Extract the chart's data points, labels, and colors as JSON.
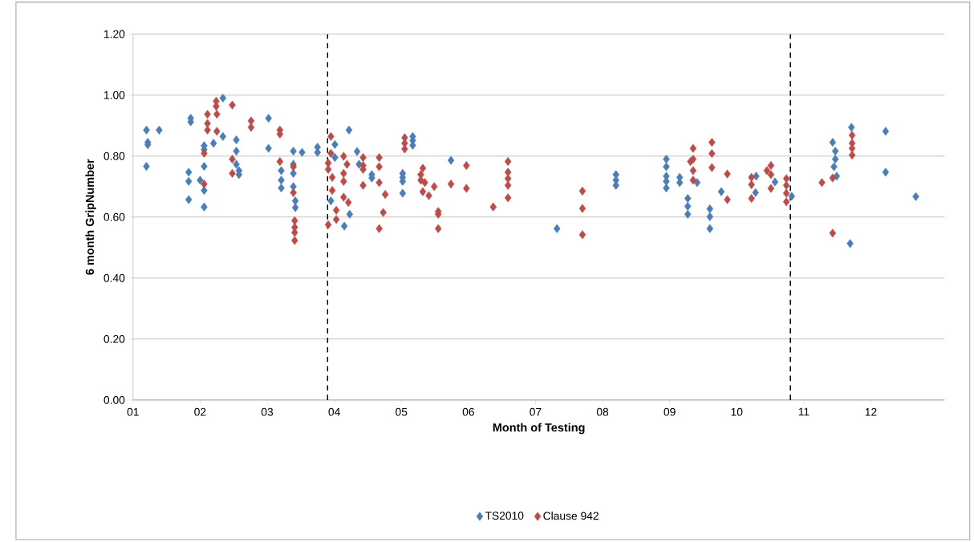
{
  "chart_data": {
    "type": "scatter",
    "xlabel": "Month of Testing",
    "ylabel": "6 month GripNumber",
    "xlim": [
      1,
      13.1
    ],
    "ylim": [
      0,
      1.2
    ],
    "xticks": [
      {
        "value": 1,
        "label": "01"
      },
      {
        "value": 2,
        "label": "02"
      },
      {
        "value": 3,
        "label": "03"
      },
      {
        "value": 4,
        "label": "04"
      },
      {
        "value": 5,
        "label": "05"
      },
      {
        "value": 6,
        "label": "06"
      },
      {
        "value": 7,
        "label": "07"
      },
      {
        "value": 8,
        "label": "08"
      },
      {
        "value": 9,
        "label": "09"
      },
      {
        "value": 10,
        "label": "10"
      },
      {
        "value": 11,
        "label": "11"
      },
      {
        "value": 12,
        "label": "12"
      }
    ],
    "yticks": [
      {
        "value": 0,
        "label": "0.00"
      },
      {
        "value": 0.2,
        "label": "0.20"
      },
      {
        "value": 0.4,
        "label": "0.40"
      },
      {
        "value": 0.6,
        "label": "0.60"
      },
      {
        "value": 0.8,
        "label": "0.80"
      },
      {
        "value": 1.0,
        "label": "1.00"
      },
      {
        "value": 1.2,
        "label": "1.20"
      }
    ],
    "grid": "y",
    "legend": "bottom",
    "marker": "diamond",
    "ref_lines": [
      {
        "axis": "x",
        "value": 3.9,
        "color": "#000000",
        "line_style": "dashed"
      },
      {
        "axis": "x",
        "value": 10.8,
        "color": "#000000",
        "line_style": "dashed"
      }
    ],
    "series": [
      {
        "name": "TS2010",
        "color": "#4a7ebb",
        "x": [
          1.2,
          1.39,
          1.22,
          1.22,
          1.2,
          1.86,
          1.86,
          1.83,
          1.83,
          1.83,
          2.06,
          2.06,
          2.06,
          2.0,
          2.06,
          2.06,
          2.2,
          2.34,
          2.34,
          2.54,
          2.54,
          2.54,
          2.58,
          2.58,
          3.02,
          3.02,
          3.21,
          3.21,
          3.21,
          3.39,
          3.39,
          3.39,
          3.39,
          3.42,
          3.42,
          3.52,
          3.75,
          3.75,
          3.95,
          4.01,
          4.01,
          4.22,
          4.23,
          4.15,
          4.34,
          4.37,
          4.56,
          4.56,
          5.02,
          5.02,
          5.02,
          5.02,
          5.17,
          5.17,
          5.17,
          5.74,
          7.32,
          8.2,
          8.2,
          8.2,
          8.95,
          8.95,
          8.95,
          8.95,
          8.95,
          9.15,
          9.15,
          9.27,
          9.27,
          9.27,
          9.41,
          9.6,
          9.6,
          9.6,
          9.77,
          10.29,
          10.28,
          10.57,
          10.82,
          11.43,
          11.47,
          11.47,
          11.45,
          11.49,
          11.71,
          12.22,
          12.22,
          12.67,
          11.69
        ],
        "values": [
          0.885,
          0.885,
          0.837,
          0.845,
          0.766,
          0.924,
          0.912,
          0.747,
          0.717,
          0.657,
          0.834,
          0.821,
          0.766,
          0.721,
          0.687,
          0.633,
          0.842,
          0.99,
          0.864,
          0.853,
          0.816,
          0.773,
          0.752,
          0.739,
          0.924,
          0.825,
          0.752,
          0.721,
          0.695,
          0.816,
          0.773,
          0.743,
          0.7,
          0.653,
          0.631,
          0.812,
          0.829,
          0.812,
          0.653,
          0.838,
          0.795,
          0.885,
          0.609,
          0.57,
          0.815,
          0.773,
          0.739,
          0.728,
          0.743,
          0.73,
          0.717,
          0.678,
          0.864,
          0.851,
          0.835,
          0.786,
          0.562,
          0.739,
          0.721,
          0.704,
          0.79,
          0.765,
          0.734,
          0.717,
          0.695,
          0.73,
          0.713,
          0.661,
          0.635,
          0.609,
          0.713,
          0.627,
          0.601,
          0.562,
          0.683,
          0.734,
          0.68,
          0.715,
          0.668,
          0.845,
          0.816,
          0.79,
          0.765,
          0.734,
          0.894,
          0.881,
          0.747,
          0.667,
          0.513
        ]
      },
      {
        "name": "Clause 942",
        "color": "#be4b48",
        "x": [
          2.06,
          2.06,
          2.11,
          2.11,
          2.11,
          2.24,
          2.24,
          2.25,
          2.25,
          2.48,
          2.48,
          2.48,
          2.76,
          2.76,
          3.19,
          3.19,
          3.19,
          3.39,
          3.39,
          3.41,
          3.41,
          3.41,
          3.41,
          3.95,
          3.95,
          3.91,
          3.91,
          3.97,
          3.97,
          3.91,
          4.03,
          4.03,
          4.14,
          4.19,
          4.14,
          4.14,
          4.14,
          4.21,
          4.43,
          4.43,
          4.43,
          4.43,
          4.67,
          4.67,
          4.67,
          4.76,
          4.73,
          4.67,
          5.05,
          5.05,
          5.05,
          5.32,
          5.29,
          5.29,
          5.35,
          5.32,
          5.41,
          5.49,
          5.55,
          5.55,
          5.55,
          5.74,
          5.97,
          5.97,
          6.37,
          6.59,
          6.59,
          6.59,
          6.59,
          6.59,
          7.7,
          7.7,
          7.7,
          9.35,
          9.35,
          9.31,
          9.35,
          9.35,
          9.63,
          9.63,
          9.63,
          9.86,
          9.86,
          10.22,
          10.22,
          10.22,
          10.45,
          10.51,
          10.51,
          10.51,
          10.74,
          10.74,
          10.74,
          10.74,
          11.27,
          11.43,
          11.43,
          11.72,
          11.72,
          11.72,
          11.72
        ],
        "values": [
          0.809,
          0.708,
          0.937,
          0.907,
          0.885,
          0.98,
          0.963,
          0.937,
          0.881,
          0.967,
          0.79,
          0.743,
          0.915,
          0.894,
          0.885,
          0.872,
          0.782,
          0.765,
          0.68,
          0.588,
          0.566,
          0.549,
          0.523,
          0.864,
          0.809,
          0.777,
          0.756,
          0.73,
          0.687,
          0.575,
          0.622,
          0.592,
          0.799,
          0.773,
          0.743,
          0.717,
          0.665,
          0.648,
          0.795,
          0.769,
          0.756,
          0.704,
          0.795,
          0.765,
          0.713,
          0.674,
          0.615,
          0.562,
          0.86,
          0.842,
          0.823,
          0.76,
          0.739,
          0.721,
          0.713,
          0.683,
          0.67,
          0.7,
          0.618,
          0.609,
          0.562,
          0.708,
          0.769,
          0.694,
          0.633,
          0.782,
          0.747,
          0.726,
          0.704,
          0.663,
          0.685,
          0.628,
          0.542,
          0.825,
          0.79,
          0.782,
          0.752,
          0.721,
          0.845,
          0.808,
          0.762,
          0.741,
          0.657,
          0.73,
          0.706,
          0.661,
          0.752,
          0.769,
          0.739,
          0.694,
          0.726,
          0.704,
          0.678,
          0.65,
          0.713,
          0.728,
          0.547,
          0.868,
          0.842,
          0.825,
          0.803
        ]
      }
    ]
  }
}
